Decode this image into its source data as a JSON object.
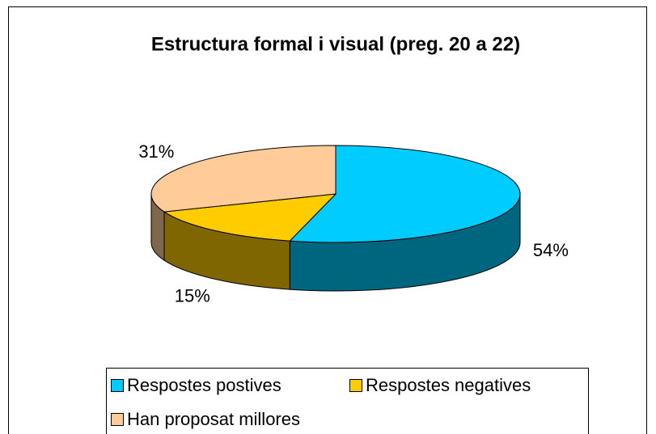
{
  "chart_data": {
    "type": "pie",
    "title": "Estructura formal i visual (preg. 20 a 22)",
    "categories": [
      "Respostes postives",
      "Respostes negatives",
      "Han proposat millores"
    ],
    "values": [
      54,
      15,
      31
    ],
    "value_labels": [
      "54%",
      "15%",
      "31%"
    ],
    "colors": [
      "#00ccff",
      "#ffcc00",
      "#ffcc99"
    ]
  }
}
